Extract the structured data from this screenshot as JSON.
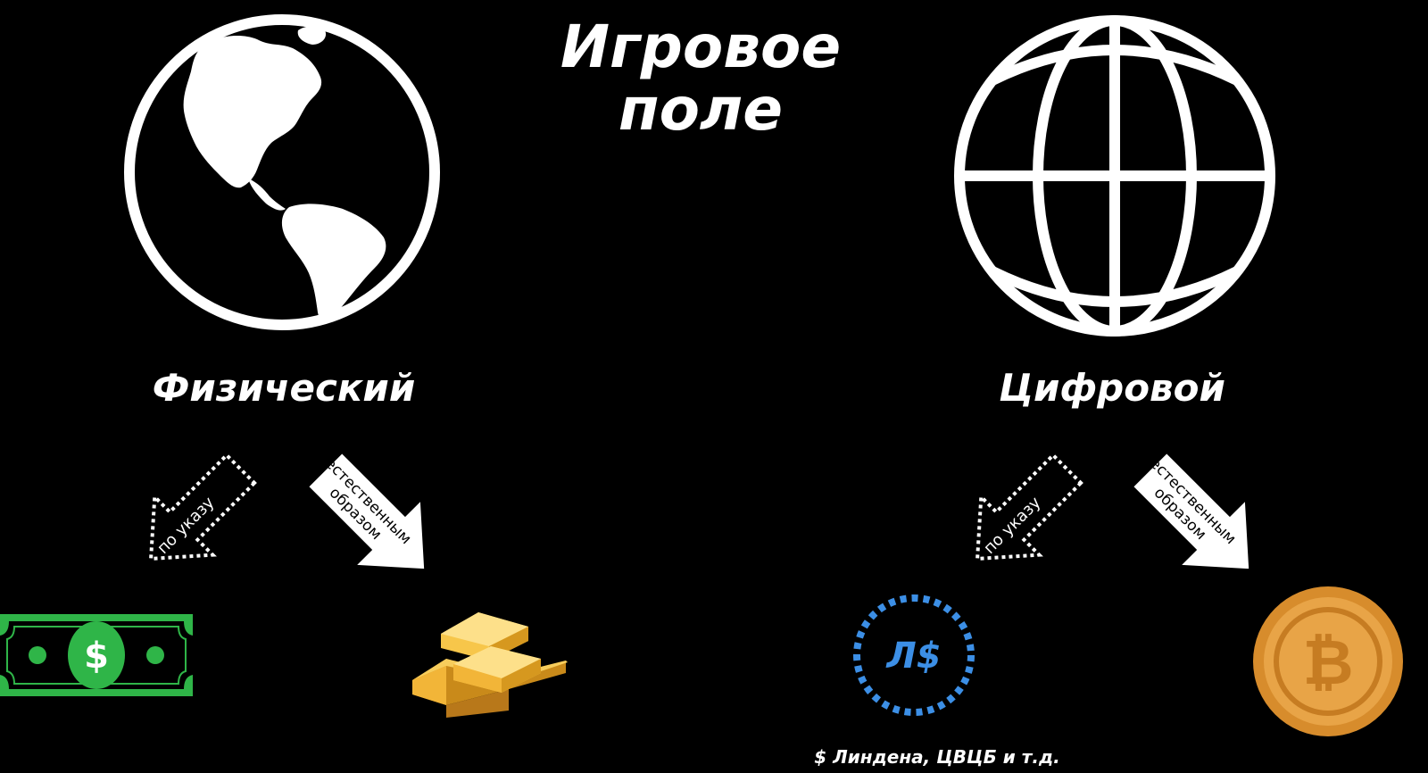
{
  "title": {
    "line1": "Игровое",
    "line2": "поле"
  },
  "physical": {
    "label": "Физический",
    "arrow_decree": "по указу",
    "arrow_natural_line1": "естественным",
    "arrow_natural_line2": "образом",
    "dollar_symbol": "$"
  },
  "digital": {
    "label": "Цифровой",
    "arrow_decree": "по указу",
    "arrow_natural_line1": "естественным",
    "arrow_natural_line2": "образом",
    "linden_symbol": "Л$",
    "linden_caption": "$ Линдена, ЦВЦБ и т.д.",
    "bitcoin_symbol": "₿"
  },
  "colors": {
    "background": "#000000",
    "foreground": "#ffffff",
    "dollar_green": "#2fb548",
    "linden_blue": "#3c8fe6",
    "gold": "#f2b538",
    "bitcoin_orange": "#e8a447"
  },
  "icons": [
    "earth-americas-icon",
    "wireframe-globe-icon",
    "dollar-bill-icon",
    "gold-bars-icon",
    "linden-dollar-icon",
    "bitcoin-icon"
  ]
}
